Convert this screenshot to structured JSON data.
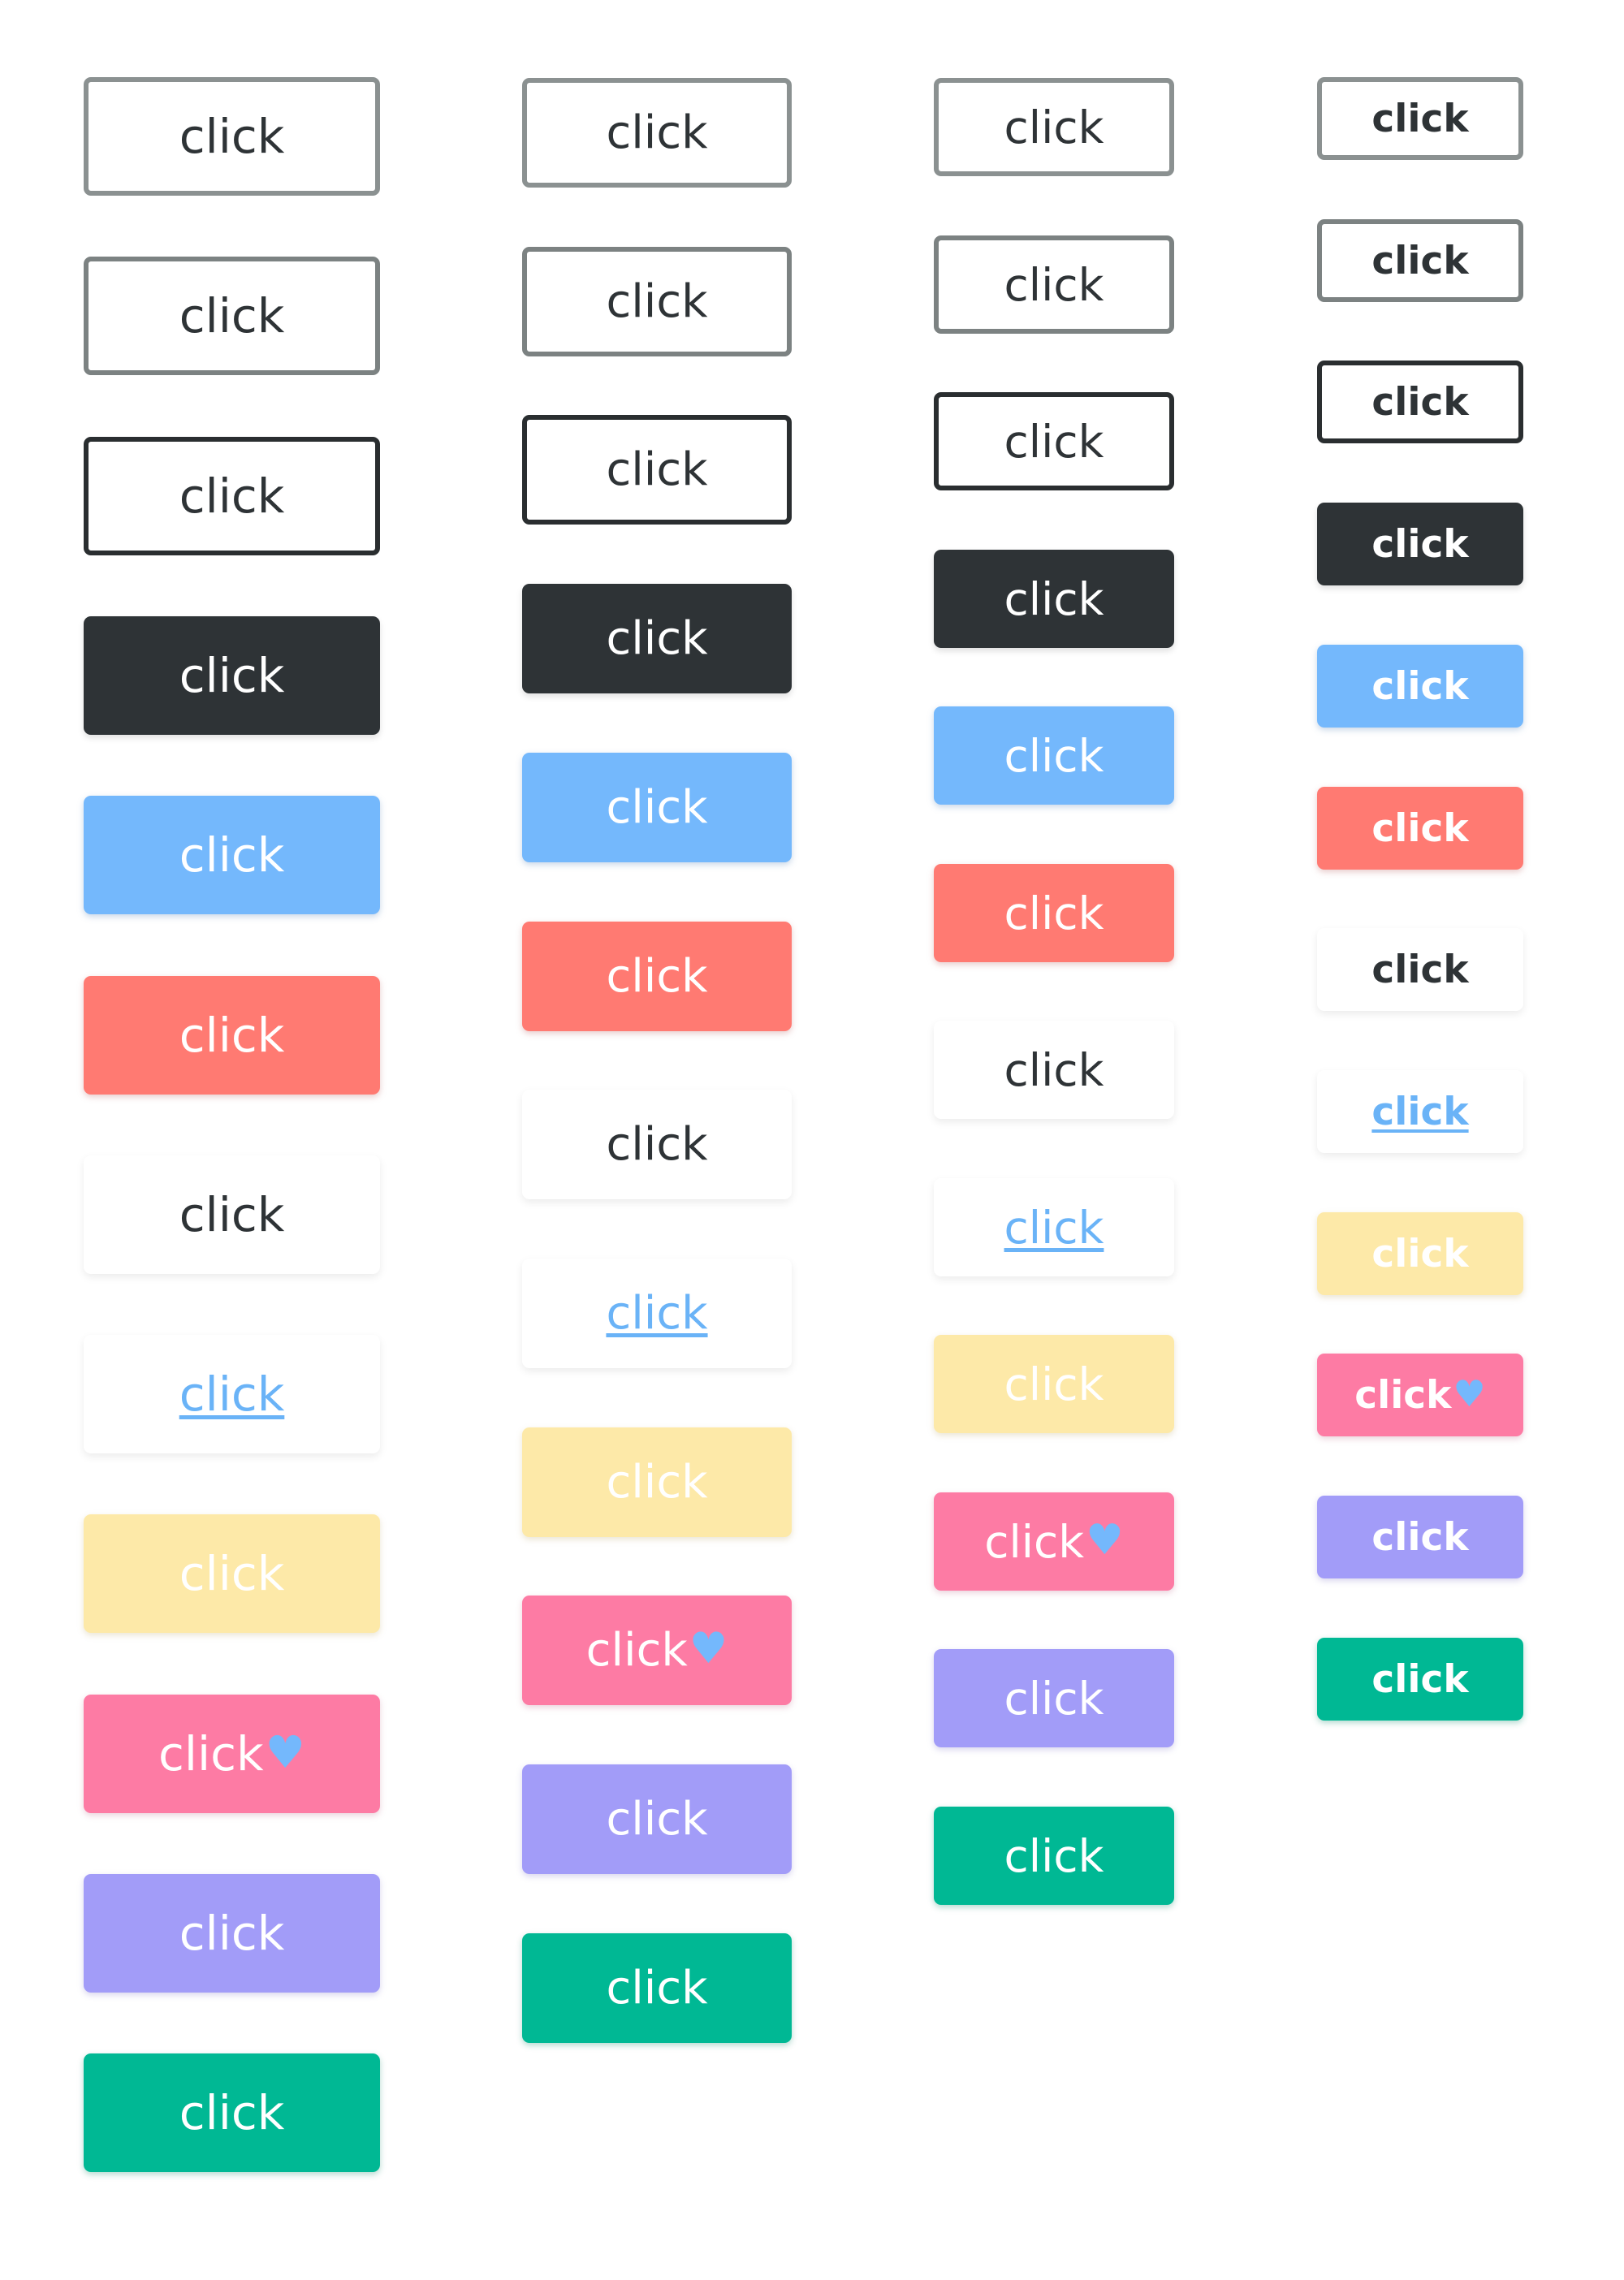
{
  "buttons": [
    {
      "label": "click",
      "variant": "outline-light"
    },
    {
      "label": "click",
      "variant": "outline-mid"
    },
    {
      "label": "click",
      "variant": "outline-dark"
    },
    {
      "label": "click",
      "variant": "dark"
    },
    {
      "label": "click",
      "variant": "blue"
    },
    {
      "label": "click",
      "variant": "red"
    },
    {
      "label": "click",
      "variant": "white"
    },
    {
      "label": "click",
      "variant": "link"
    },
    {
      "label": "click",
      "variant": "yellow"
    },
    {
      "label": "click",
      "variant": "pink",
      "icon": "heart-icon",
      "icon_glyph": "♥"
    },
    {
      "label": "click",
      "variant": "purple"
    },
    {
      "label": "click",
      "variant": "green"
    }
  ],
  "colors": {
    "dark": "#2e3336",
    "blue": "#74b8fc",
    "red": "#ff7a72",
    "link": "#6ab3f7",
    "yellow": "#fde9a8",
    "pink": "#fd7ba4",
    "purple": "#a29cf8",
    "green": "#00b894",
    "outline_light": "#8b9191",
    "outline_dark": "#2a2e30",
    "background": "#ffffff"
  }
}
